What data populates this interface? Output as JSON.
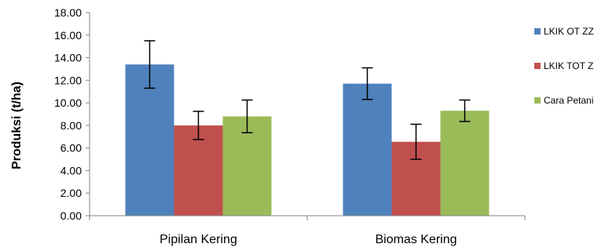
{
  "chart_data": {
    "type": "bar",
    "title": "",
    "xlabel": "",
    "ylabel": "Produksi (t/ha)",
    "ylim": [
      0,
      18
    ],
    "yticks": [
      "0.00",
      "2.00",
      "4.00",
      "6.00",
      "8.00",
      "10.00",
      "12.00",
      "14.00",
      "16.00",
      "18.00"
    ],
    "categories": [
      "Pipilan Kering",
      "Biomas Kering"
    ],
    "grid": false,
    "legend_position": "right",
    "series": [
      {
        "name": "LKIK OT ZZ",
        "color": "#4F81BD",
        "values": [
          13.4,
          11.7
        ],
        "error": [
          2.1,
          1.4
        ]
      },
      {
        "name": "LKIK TOT ZZ",
        "color": "#C0504D",
        "values": [
          8.0,
          6.55
        ],
        "error": [
          1.25,
          1.55
        ]
      },
      {
        "name": "Cara Petani",
        "color": "#9BBB59",
        "values": [
          8.8,
          9.3
        ],
        "error": [
          1.45,
          0.95
        ]
      }
    ]
  }
}
